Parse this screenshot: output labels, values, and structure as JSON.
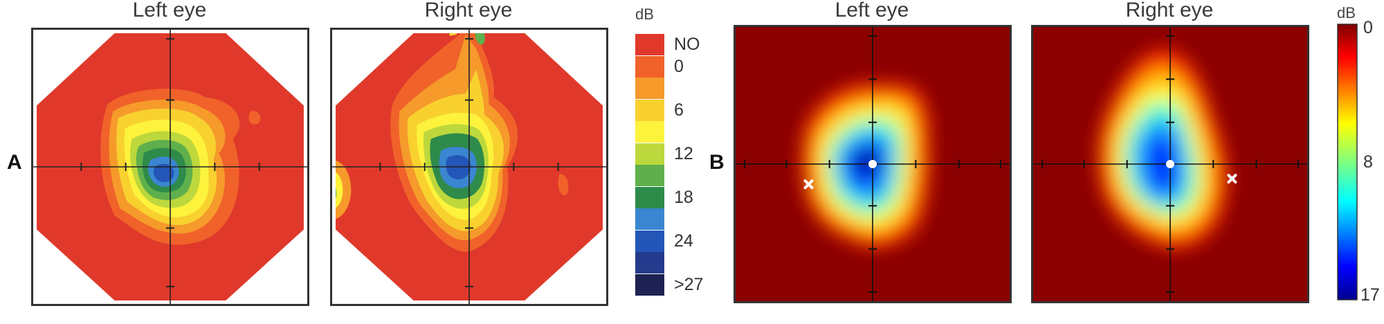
{
  "panelA": {
    "letter": "A",
    "left_title": "Left eye",
    "right_title": "Right eye",
    "legend": {
      "unit": "dB",
      "items": [
        {
          "label": "NO",
          "color": "#e0392b"
        },
        {
          "label": "0",
          "color": "#f0622a"
        },
        {
          "label": "",
          "color": "#f59a2b"
        },
        {
          "label": "6",
          "color": "#f8d12f"
        },
        {
          "label": "",
          "color": "#fdf23c"
        },
        {
          "label": "12",
          "color": "#bdd83c"
        },
        {
          "label": "",
          "color": "#5fb04c"
        },
        {
          "label": "18",
          "color": "#2e8b4a"
        },
        {
          "label": "",
          "color": "#3a86d0"
        },
        {
          "label": "24",
          "color": "#2456b8"
        },
        {
          "label": "",
          "color": "#243a8c"
        },
        {
          "label": ">27",
          "color": "#1d2252"
        }
      ]
    }
  },
  "panelB": {
    "letter": "B",
    "left_title": "Left eye",
    "right_title": "Right eye",
    "colorbar": {
      "unit": "dB",
      "ticks": [
        "0",
        "8",
        "17"
      ],
      "min_value": 0,
      "max_value": 17
    }
  }
}
